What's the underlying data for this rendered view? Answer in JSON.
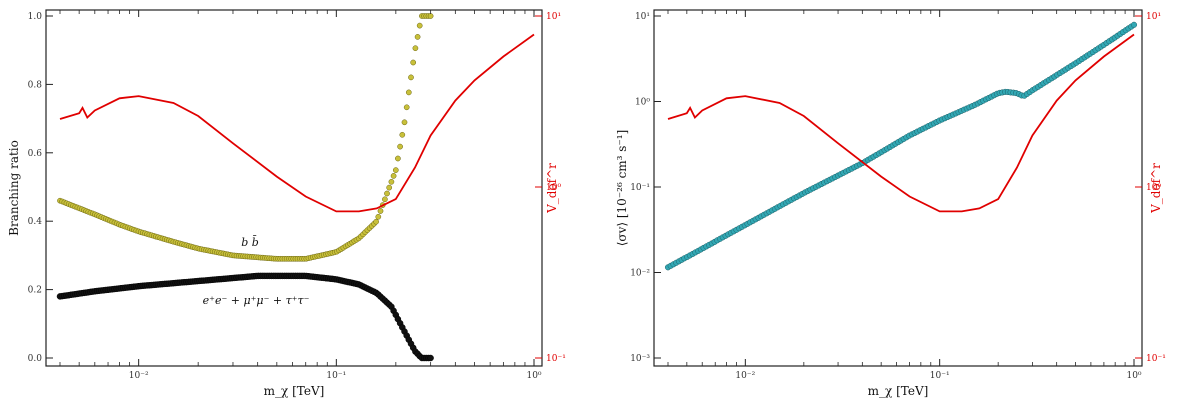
{
  "colors": {
    "red_axis": "#e00000",
    "bb_points": "#c8c03a",
    "lepton_points": "#111111",
    "sigma_points": "#32a8b4",
    "frame": "#222222"
  },
  "chart_data": [
    {
      "type": "scatter",
      "title": "",
      "xlabel": "m_χ [TeV]",
      "ylabel": "Branching ratio",
      "y2label": "V_dof^r",
      "xscale": "log",
      "xlim": [
        0.004,
        1.0
      ],
      "ylim": [
        0.0,
        1.0
      ],
      "y2scale": "log",
      "y2lim": [
        0.1,
        10
      ],
      "x_tick_labels": [
        "10⁻²",
        "10⁻¹",
        "10⁰"
      ],
      "y_tick_labels": [
        "0.0",
        "0.2",
        "0.4",
        "0.6",
        "0.8",
        "1.0"
      ],
      "y2_tick_labels": [
        "10⁻¹",
        "10⁰",
        "10¹"
      ],
      "annotations": [
        "b b̄",
        "e⁺e⁻ + μ⁺μ⁻ + τ⁺τ⁻"
      ],
      "series": [
        {
          "key": "bb",
          "axis": "left",
          "style": "points",
          "x": [
            0.004,
            0.006,
            0.008,
            0.01,
            0.015,
            0.02,
            0.03,
            0.05,
            0.07,
            0.1,
            0.13,
            0.16,
            0.2,
            0.22,
            0.25,
            0.27,
            0.3
          ],
          "y": [
            0.46,
            0.42,
            0.39,
            0.37,
            0.34,
            0.32,
            0.3,
            0.29,
            0.29,
            0.31,
            0.35,
            0.4,
            0.55,
            0.68,
            0.9,
            1.0,
            1.0
          ]
        },
        {
          "key": "leptons",
          "axis": "left",
          "style": "points",
          "x": [
            0.004,
            0.006,
            0.01,
            0.02,
            0.04,
            0.07,
            0.1,
            0.13,
            0.16,
            0.19,
            0.22,
            0.25,
            0.27,
            0.3
          ],
          "y": [
            0.18,
            0.195,
            0.21,
            0.225,
            0.24,
            0.24,
            0.23,
            0.215,
            0.19,
            0.15,
            0.08,
            0.02,
            0.0,
            0.0
          ]
        },
        {
          "key": "vdof",
          "axis": "right",
          "style": "line",
          "x": [
            0.004,
            0.005,
            0.0052,
            0.0055,
            0.006,
            0.008,
            0.01,
            0.015,
            0.02,
            0.03,
            0.05,
            0.07,
            0.1,
            0.13,
            0.16,
            0.2,
            0.25,
            0.3,
            0.4,
            0.5,
            0.7,
            1.0
          ],
          "y": [
            2.5,
            2.7,
            2.9,
            2.55,
            2.8,
            3.3,
            3.4,
            3.1,
            2.6,
            1.8,
            1.15,
            0.88,
            0.72,
            0.72,
            0.75,
            0.85,
            1.3,
            2.0,
            3.2,
            4.2,
            5.8,
            7.8
          ]
        }
      ]
    },
    {
      "type": "scatter",
      "title": "",
      "xlabel": "m_χ [TeV]",
      "ylabel": "⟨σv⟩ [10⁻²⁶ cm³ s⁻¹]",
      "y2label": "V_dof^r",
      "xscale": "log",
      "xlim": [
        0.004,
        1.0
      ],
      "yscale": "log",
      "ylim": [
        0.001,
        10
      ],
      "y2scale": "log",
      "y2lim": [
        0.1,
        10
      ],
      "x_tick_labels": [
        "10⁻²",
        "10⁻¹",
        "10⁰"
      ],
      "y_tick_labels": [
        "10⁻³",
        "10⁻²",
        "10⁻¹",
        "10⁰",
        "10¹"
      ],
      "y2_tick_labels": [
        "10⁻¹",
        "10⁰",
        "10¹"
      ],
      "series": [
        {
          "key": "sigmav",
          "axis": "left",
          "style": "points",
          "x": [
            0.004,
            0.006,
            0.01,
            0.02,
            0.04,
            0.07,
            0.1,
            0.15,
            0.2,
            0.22,
            0.25,
            0.27,
            0.3,
            0.5,
            0.7,
            1.0
          ],
          "y": [
            0.0115,
            0.019,
            0.036,
            0.085,
            0.19,
            0.4,
            0.6,
            0.9,
            1.25,
            1.3,
            1.25,
            1.15,
            1.35,
            2.8,
            4.6,
            7.9
          ]
        },
        {
          "key": "vdof",
          "axis": "right",
          "style": "line",
          "x": [
            0.004,
            0.005,
            0.0052,
            0.0055,
            0.006,
            0.008,
            0.01,
            0.015,
            0.02,
            0.03,
            0.05,
            0.07,
            0.1,
            0.13,
            0.16,
            0.2,
            0.25,
            0.3,
            0.4,
            0.5,
            0.7,
            1.0
          ],
          "y": [
            2.5,
            2.7,
            2.9,
            2.55,
            2.8,
            3.3,
            3.4,
            3.1,
            2.6,
            1.8,
            1.15,
            0.88,
            0.72,
            0.72,
            0.75,
            0.85,
            1.3,
            2.0,
            3.2,
            4.2,
            5.8,
            7.8
          ]
        }
      ]
    }
  ]
}
